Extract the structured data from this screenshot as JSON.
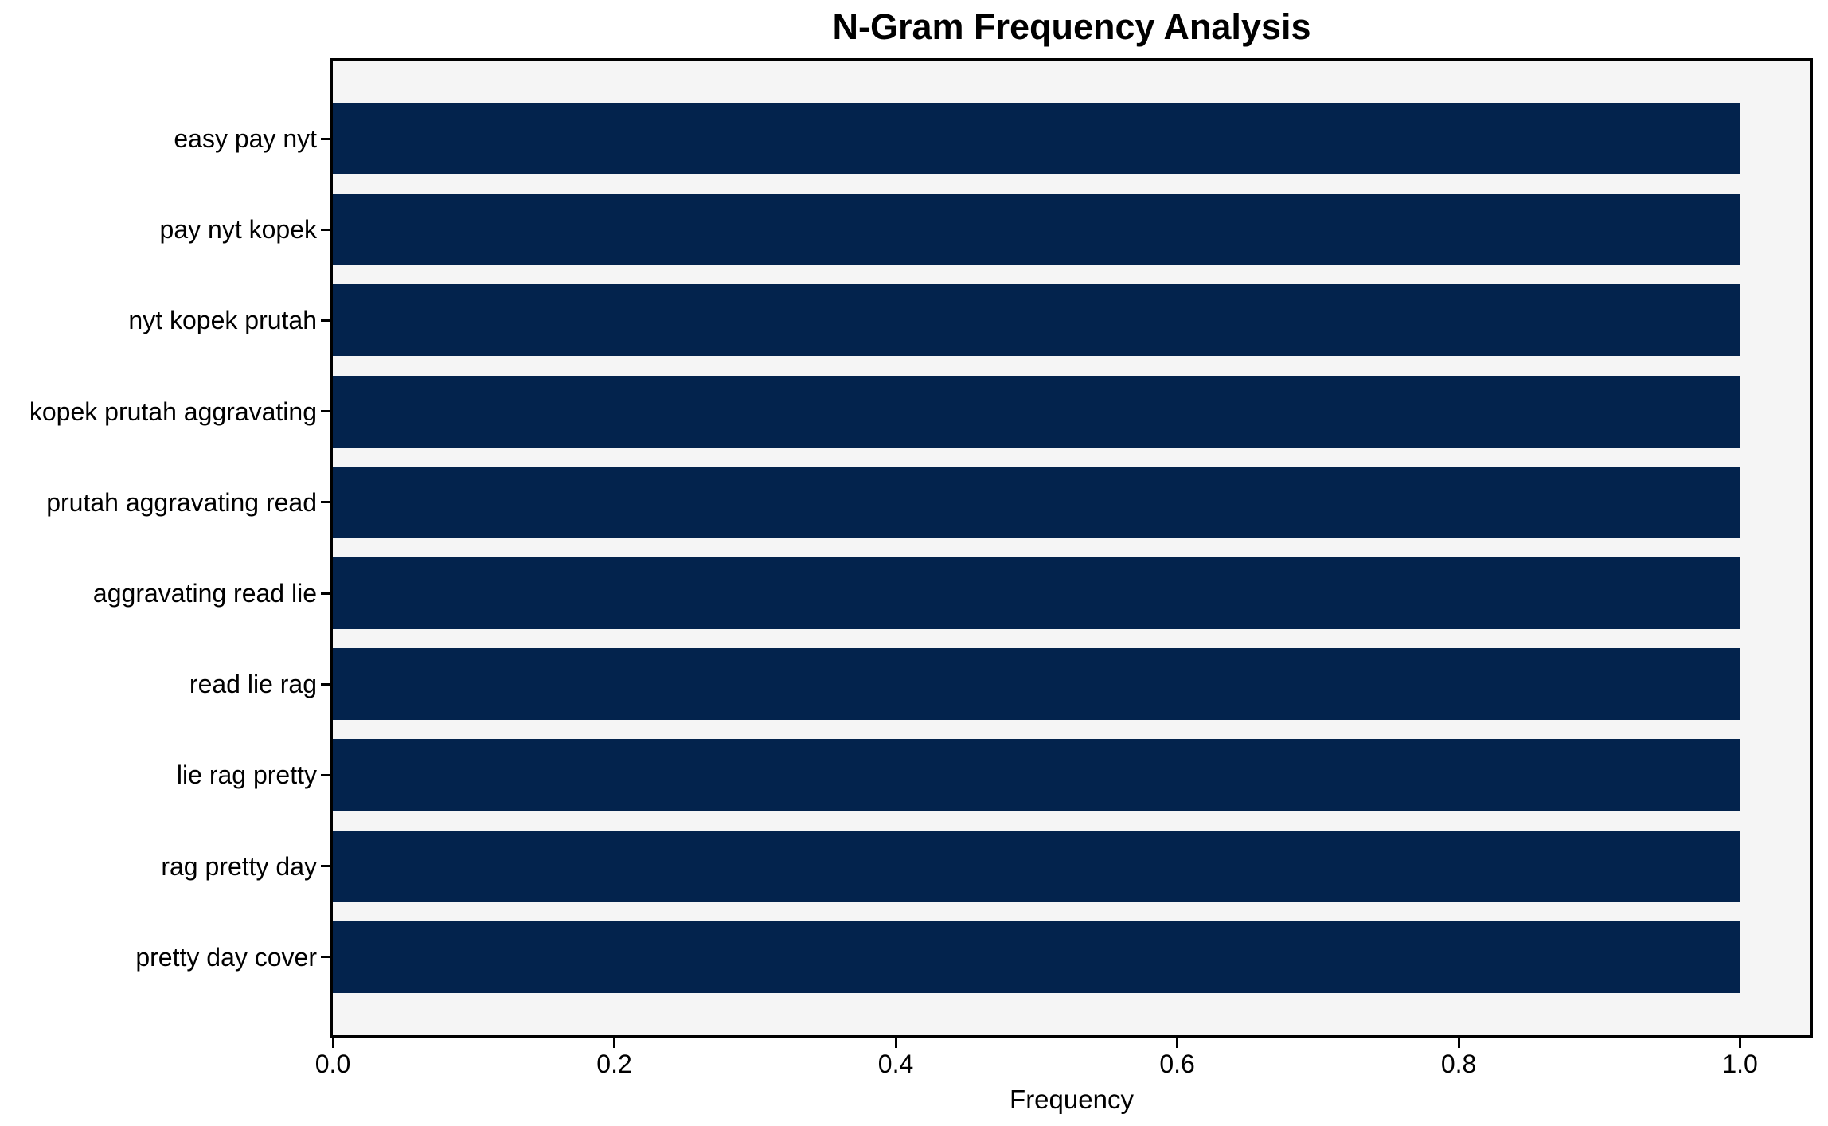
{
  "chart_data": {
    "type": "bar",
    "orientation": "horizontal",
    "title": "N-Gram Frequency Analysis",
    "xlabel": "Frequency",
    "ylabel": "",
    "categories": [
      "easy pay nyt",
      "pay nyt kopek",
      "nyt kopek prutah",
      "kopek prutah aggravating",
      "prutah aggravating read",
      "aggravating read lie",
      "read lie rag",
      "lie rag pretty",
      "rag pretty day",
      "pretty day cover"
    ],
    "values": [
      1.0,
      1.0,
      1.0,
      1.0,
      1.0,
      1.0,
      1.0,
      1.0,
      1.0,
      1.0
    ],
    "xticks": [
      0.0,
      0.2,
      0.4,
      0.6,
      0.8,
      1.0
    ],
    "xtick_labels": [
      "0.0",
      "0.2",
      "0.4",
      "0.6",
      "0.8",
      "1.0"
    ],
    "xlim": [
      0.0,
      1.05
    ],
    "grid": false,
    "legend": null,
    "colors": {
      "bar": "#03234d",
      "plot_background": "#f5f5f5",
      "figure_background": "#ffffff",
      "axis": "#000000",
      "text": "#000000"
    }
  }
}
